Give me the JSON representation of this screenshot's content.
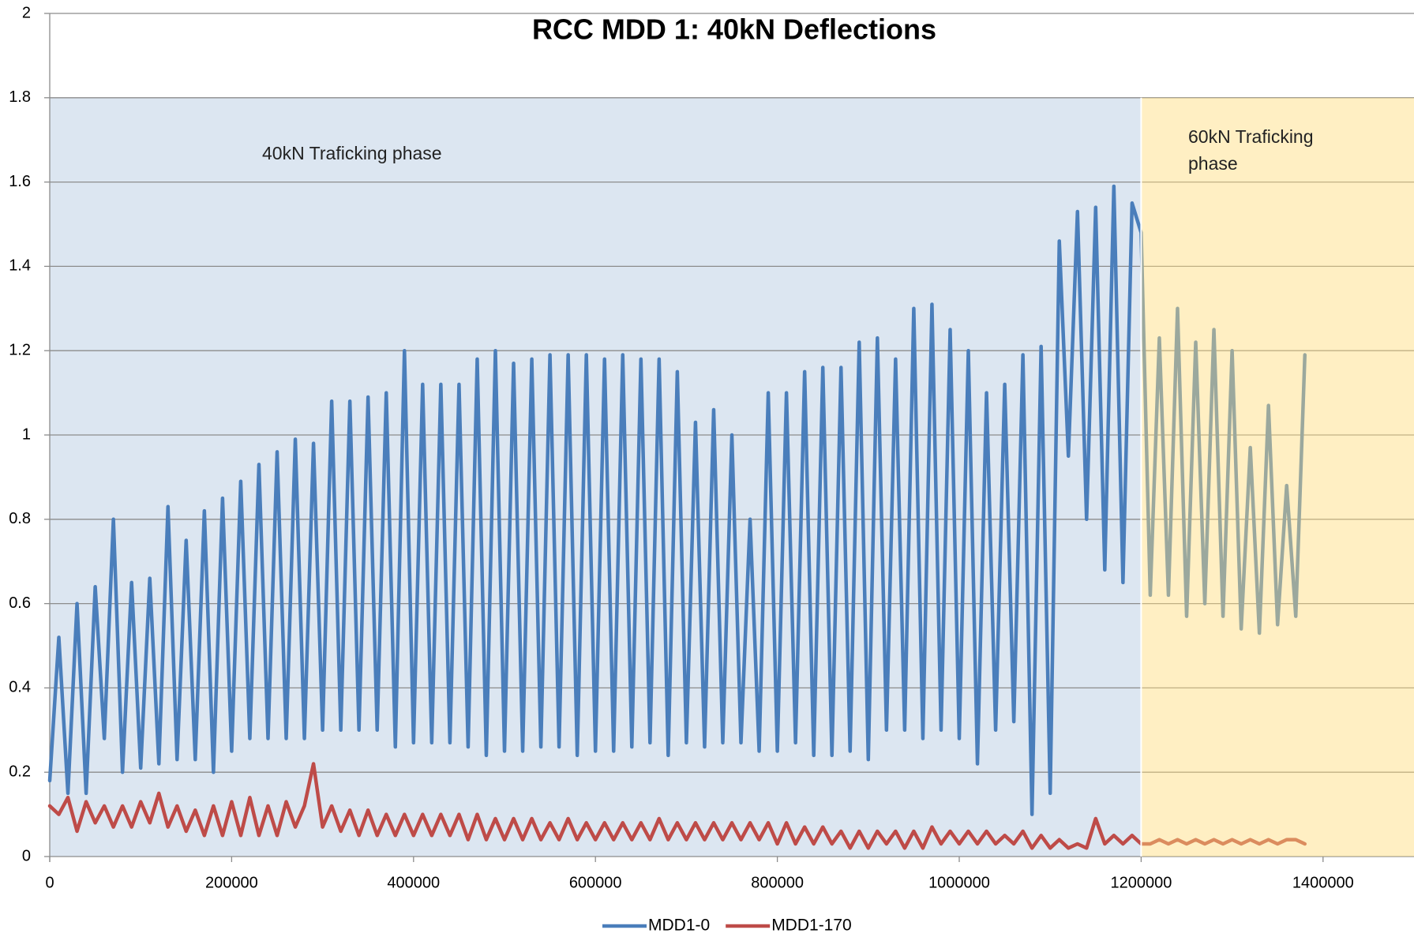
{
  "chart_data": {
    "type": "line",
    "title": "RCC MDD 1: 40kN Deflections",
    "xlim": [
      0,
      1500000
    ],
    "ylim": [
      0,
      2
    ],
    "xticks": [
      0,
      200000,
      400000,
      600000,
      800000,
      1000000,
      1200000,
      1400000
    ],
    "yticks": [
      0,
      0.2,
      0.4,
      0.6,
      0.8,
      1,
      1.2,
      1.4,
      1.6,
      1.8,
      2
    ],
    "grid": true,
    "legend": "bottom",
    "regions": [
      {
        "label": [
          "40kN Traficking phase"
        ],
        "x": [
          0,
          1200000
        ],
        "y": [
          0,
          1.8
        ],
        "color": "#dce6f1",
        "layer": "below"
      },
      {
        "label": [
          "60kN Traficking",
          "phase"
        ],
        "x": [
          1200000,
          1500000
        ],
        "y": [
          0,
          1.8
        ],
        "color": "#ffdb7a",
        "layer": "above"
      }
    ],
    "x": [
      0,
      10000,
      20000,
      30000,
      40000,
      50000,
      60000,
      70000,
      80000,
      90000,
      100000,
      110000,
      120000,
      130000,
      140000,
      150000,
      160000,
      170000,
      180000,
      190000,
      200000,
      210000,
      220000,
      230000,
      240000,
      250000,
      260000,
      270000,
      280000,
      290000,
      300000,
      310000,
      320000,
      330000,
      340000,
      350000,
      360000,
      370000,
      380000,
      390000,
      400000,
      410000,
      420000,
      430000,
      440000,
      450000,
      460000,
      470000,
      480000,
      490000,
      500000,
      510000,
      520000,
      530000,
      540000,
      550000,
      560000,
      570000,
      580000,
      590000,
      600000,
      610000,
      620000,
      630000,
      640000,
      650000,
      660000,
      670000,
      680000,
      690000,
      700000,
      710000,
      720000,
      730000,
      740000,
      750000,
      760000,
      770000,
      780000,
      790000,
      800000,
      810000,
      820000,
      830000,
      840000,
      850000,
      860000,
      870000,
      880000,
      890000,
      900000,
      910000,
      920000,
      930000,
      940000,
      950000,
      960000,
      970000,
      980000,
      990000,
      1000000,
      1010000,
      1020000,
      1030000,
      1040000,
      1050000,
      1060000,
      1070000,
      1080000,
      1090000,
      1100000,
      1110000,
      1120000,
      1130000,
      1140000,
      1150000,
      1160000,
      1170000,
      1180000,
      1190000,
      1200000,
      1210000,
      1220000,
      1230000,
      1240000,
      1250000,
      1260000,
      1270000,
      1280000,
      1290000,
      1300000,
      1310000,
      1320000,
      1330000,
      1340000,
      1350000,
      1360000,
      1370000,
      1380000
    ],
    "series": [
      {
        "name": "MDD1-0",
        "color": "#4a7ebb",
        "values": [
          0.18,
          0.52,
          0.15,
          0.6,
          0.15,
          0.64,
          0.28,
          0.8,
          0.2,
          0.65,
          0.21,
          0.66,
          0.22,
          0.83,
          0.23,
          0.75,
          0.23,
          0.82,
          0.2,
          0.85,
          0.25,
          0.89,
          0.28,
          0.93,
          0.28,
          0.96,
          0.28,
          0.99,
          0.28,
          0.98,
          0.3,
          1.08,
          0.3,
          1.08,
          0.3,
          1.09,
          0.3,
          1.1,
          0.26,
          1.2,
          0.27,
          1.12,
          0.27,
          1.12,
          0.27,
          1.12,
          0.26,
          1.18,
          0.24,
          1.2,
          0.25,
          1.17,
          0.25,
          1.18,
          0.26,
          1.19,
          0.26,
          1.19,
          0.24,
          1.19,
          0.25,
          1.18,
          0.25,
          1.19,
          0.26,
          1.18,
          0.27,
          1.18,
          0.24,
          1.15,
          0.27,
          1.03,
          0.26,
          1.06,
          0.27,
          1.0,
          0.27,
          0.8,
          0.25,
          1.1,
          0.25,
          1.1,
          0.27,
          1.15,
          0.24,
          1.16,
          0.24,
          1.16,
          0.25,
          1.22,
          0.23,
          1.23,
          0.3,
          1.18,
          0.3,
          1.3,
          0.28,
          1.31,
          0.3,
          1.25,
          0.28,
          1.2,
          0.22,
          1.1,
          0.3,
          1.12,
          0.32,
          1.19,
          0.1,
          1.21,
          0.15,
          1.46,
          0.95,
          1.53,
          0.8,
          1.54,
          0.68,
          1.59,
          0.65,
          1.55,
          1.48,
          0.62,
          1.23,
          0.62,
          1.3,
          0.57,
          1.22,
          0.6,
          1.25,
          0.57,
          1.2,
          0.54,
          0.97,
          0.53,
          1.07,
          0.55,
          0.88,
          0.57,
          1.19
        ]
      },
      {
        "name": "MDD1-170",
        "color": "#be4b48",
        "values": [
          0.12,
          0.1,
          0.14,
          0.06,
          0.13,
          0.08,
          0.12,
          0.07,
          0.12,
          0.07,
          0.13,
          0.08,
          0.15,
          0.07,
          0.12,
          0.06,
          0.11,
          0.05,
          0.12,
          0.05,
          0.13,
          0.05,
          0.14,
          0.05,
          0.12,
          0.05,
          0.13,
          0.07,
          0.12,
          0.22,
          0.07,
          0.12,
          0.06,
          0.11,
          0.05,
          0.11,
          0.05,
          0.1,
          0.05,
          0.1,
          0.05,
          0.1,
          0.05,
          0.1,
          0.05,
          0.1,
          0.04,
          0.1,
          0.04,
          0.09,
          0.04,
          0.09,
          0.04,
          0.09,
          0.04,
          0.08,
          0.04,
          0.09,
          0.04,
          0.08,
          0.04,
          0.08,
          0.04,
          0.08,
          0.04,
          0.08,
          0.04,
          0.09,
          0.04,
          0.08,
          0.04,
          0.08,
          0.04,
          0.08,
          0.04,
          0.08,
          0.04,
          0.08,
          0.04,
          0.08,
          0.03,
          0.08,
          0.03,
          0.07,
          0.03,
          0.07,
          0.03,
          0.06,
          0.02,
          0.06,
          0.02,
          0.06,
          0.03,
          0.06,
          0.02,
          0.06,
          0.02,
          0.07,
          0.03,
          0.06,
          0.03,
          0.06,
          0.03,
          0.06,
          0.03,
          0.05,
          0.03,
          0.06,
          0.02,
          0.05,
          0.02,
          0.04,
          0.02,
          0.03,
          0.02,
          0.09,
          0.03,
          0.05,
          0.03,
          0.05,
          0.03,
          0.03,
          0.04,
          0.03,
          0.04,
          0.03,
          0.04,
          0.03,
          0.04,
          0.03,
          0.04,
          0.03,
          0.04,
          0.03,
          0.04,
          0.03,
          0.04,
          0.04,
          0.03
        ]
      }
    ]
  }
}
